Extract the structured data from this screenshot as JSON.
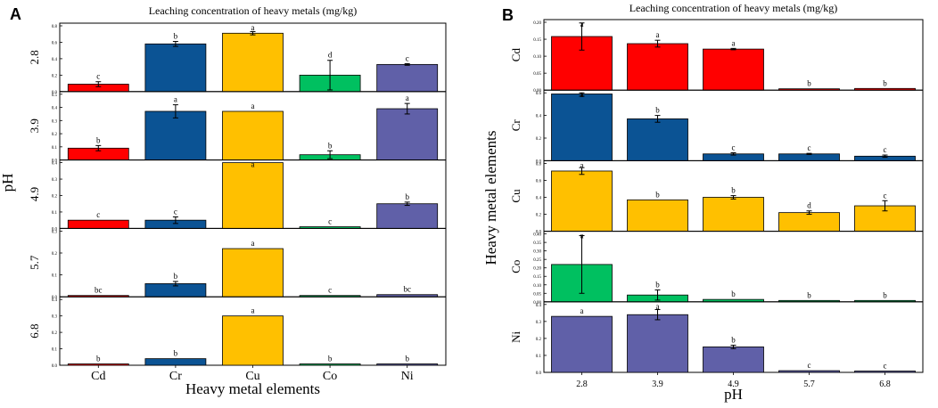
{
  "colors": {
    "Cd": "#ff0000",
    "Cr": "#0b5394",
    "Cu": "#ffc000",
    "Co": "#00c060",
    "Ni": "#6060a8"
  },
  "chart_data": [
    {
      "panel": "A",
      "type": "bar",
      "title": "Leaching concentration of heavy metals (mg/kg)",
      "xlabel": "Heavy metal elements",
      "ylabel": "pH",
      "categories": [
        "Cd",
        "Cr",
        "Cu",
        "Co",
        "Ni"
      ],
      "series": [
        {
          "name": "2.8",
          "ylim": [
            0.0,
            0.8
          ],
          "yticks": [
            "0.0",
            "0.2",
            "0.4",
            "0.6",
            "0.8"
          ],
          "values": [
            0.09,
            0.58,
            0.71,
            0.2,
            0.33
          ],
          "errors": [
            0.03,
            0.03,
            0.02,
            0.18,
            0.01
          ],
          "letters": [
            "c",
            "b",
            "a",
            "d",
            "c"
          ]
        },
        {
          "name": "3.9",
          "ylim": [
            0.0,
            0.5
          ],
          "yticks": [
            "0.0",
            "0.1",
            "0.2",
            "0.3",
            "0.4",
            "0.5"
          ],
          "values": [
            0.09,
            0.37,
            0.37,
            0.04,
            0.39
          ],
          "errors": [
            0.02,
            0.05,
            0.0,
            0.03,
            0.04
          ],
          "letters": [
            "b",
            "a",
            "a",
            "b",
            "a"
          ]
        },
        {
          "name": "4.9",
          "ylim": [
            0.0,
            0.4
          ],
          "yticks": [
            "0.0",
            "0.1",
            "0.2",
            "0.3",
            "0.4"
          ],
          "values": [
            0.05,
            0.05,
            0.4,
            0.01,
            0.15
          ],
          "errors": [
            0.0,
            0.02,
            0.0,
            0.0,
            0.01
          ],
          "letters": [
            "c",
            "c",
            "a",
            "c",
            "b"
          ]
        },
        {
          "name": "5.7",
          "ylim": [
            0.0,
            0.3
          ],
          "yticks": [
            "0.0",
            "0.1",
            "0.2",
            "0.3"
          ],
          "values": [
            0.003,
            0.06,
            0.22,
            0.0,
            0.01
          ],
          "errors": [
            0.0,
            0.01,
            0.0,
            0.0,
            0.0
          ],
          "letters": [
            "bc",
            "b",
            "a",
            "c",
            "bc"
          ]
        },
        {
          "name": "6.8",
          "ylim": [
            0.0,
            0.4
          ],
          "yticks": [
            "0.0",
            "0.1",
            "0.2",
            "0.3",
            "0.4"
          ],
          "values": [
            0.004,
            0.04,
            0.3,
            0.0,
            0.003
          ],
          "errors": [
            0.0,
            0.0,
            0.0,
            0.0,
            0.0
          ],
          "letters": [
            "b",
            "b",
            "a",
            "b",
            "b"
          ]
        }
      ]
    },
    {
      "panel": "B",
      "type": "bar",
      "title": "Leaching concentration of heavy metals (mg/kg)",
      "xlabel": "pH",
      "ylabel": "Heavy metal elements",
      "categories": [
        "2.8",
        "3.9",
        "4.9",
        "5.7",
        "6.8"
      ],
      "series": [
        {
          "name": "Cd",
          "ylim": [
            0.0,
            0.2
          ],
          "yticks": [
            "0.00",
            "0.05",
            "0.10",
            "0.15",
            "0.20"
          ],
          "values": [
            0.158,
            0.137,
            0.121,
            0.004,
            0.005
          ],
          "errors": [
            0.04,
            0.01,
            0.002,
            0.0,
            0.0
          ],
          "letters": [
            "a",
            "a",
            "a",
            "b",
            "b"
          ]
        },
        {
          "name": "Cr",
          "ylim": [
            0.0,
            0.6
          ],
          "yticks": [
            "0.0",
            "0.2",
            "0.4",
            "0.6"
          ],
          "values": [
            0.59,
            0.37,
            0.06,
            0.06,
            0.04
          ],
          "errors": [
            0.02,
            0.03,
            0.01,
            0.005,
            0.01
          ],
          "letters": [
            "a",
            "b",
            "c",
            "c",
            "c"
          ]
        },
        {
          "name": "Cu",
          "ylim": [
            0.0,
            0.8
          ],
          "yticks": [
            "0.0",
            "0.2",
            "0.4",
            "0.6",
            "0.8"
          ],
          "values": [
            0.71,
            0.37,
            0.4,
            0.22,
            0.3
          ],
          "errors": [
            0.04,
            0.0,
            0.02,
            0.02,
            0.06
          ],
          "letters": [
            "a",
            "b",
            "b",
            "d",
            "c"
          ]
        },
        {
          "name": "Co",
          "ylim": [
            0.0,
            0.4
          ],
          "yticks": [
            "0.00",
            "0.05",
            "0.10",
            "0.15",
            "0.20",
            "0.25",
            "0.30",
            "0.35",
            "0.40"
          ],
          "values": [
            0.22,
            0.04,
            0.014,
            0.0,
            0.0
          ],
          "errors": [
            0.17,
            0.03,
            0.0,
            0.0,
            0.0
          ],
          "letters": [
            "a",
            "b",
            "b",
            "b",
            "b"
          ]
        },
        {
          "name": "Ni",
          "ylim": [
            0.0,
            0.4
          ],
          "yticks": [
            "0.0",
            "0.1",
            "0.2",
            "0.3",
            "0.4"
          ],
          "values": [
            0.33,
            0.34,
            0.15,
            0.01,
            0.005
          ],
          "errors": [
            0.0,
            0.03,
            0.01,
            0.0,
            0.0
          ],
          "letters": [
            "a",
            "a",
            "b",
            "c",
            "c"
          ]
        }
      ]
    }
  ]
}
